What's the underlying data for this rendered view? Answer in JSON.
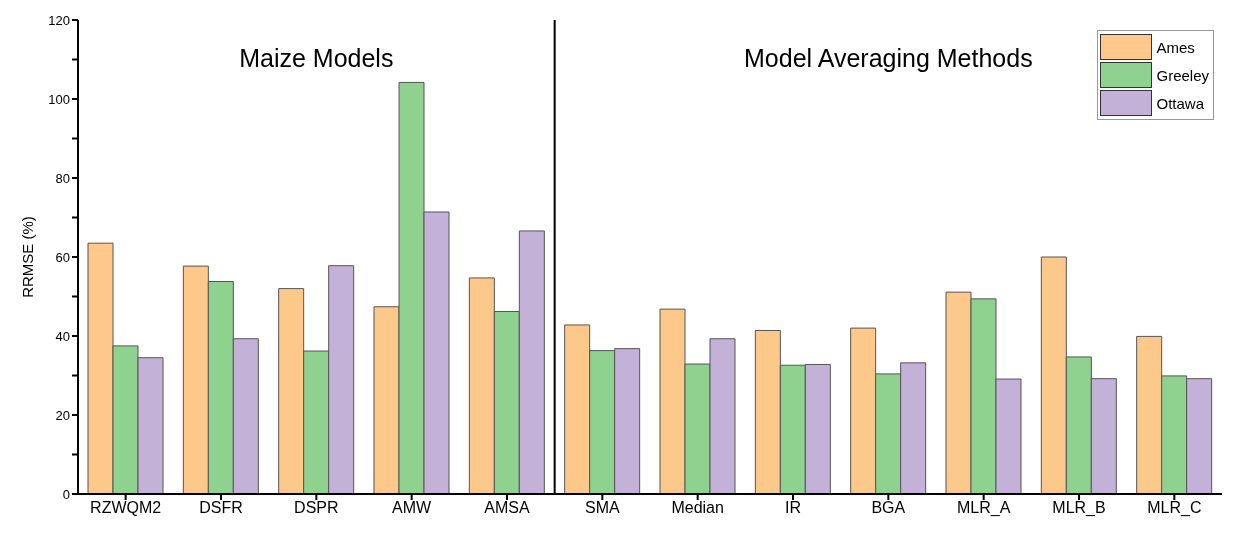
{
  "chart_data": {
    "type": "bar",
    "ylabel": "RRMSE (%)",
    "categories": [
      "RZWQM2",
      "DSFR",
      "DSPR",
      "AMW",
      "AMSA",
      "SMA",
      "Median",
      "IR",
      "BGA",
      "MLR_A",
      "MLR_B",
      "MLR_C"
    ],
    "series": [
      {
        "name": "Ames",
        "color": "#fdc98a",
        "values": [
          63.5,
          57.7,
          52,
          47.4,
          54.7,
          42.8,
          46.8,
          41.4,
          42,
          51.1,
          60,
          39.9
        ]
      },
      {
        "name": "Greeley",
        "color": "#8fd18f",
        "values": [
          37.5,
          53.8,
          36.2,
          104.2,
          46.2,
          36.3,
          32.9,
          32.6,
          30.4,
          49.4,
          34.7,
          29.9
        ]
      },
      {
        "name": "Ottawa",
        "color": "#c3b1d8",
        "values": [
          34.5,
          39.3,
          57.8,
          71.4,
          66.6,
          36.8,
          39.3,
          32.8,
          33.2,
          29.1,
          29.2,
          29.2
        ]
      }
    ],
    "ylim": [
      0,
      120
    ],
    "yticks": [
      0,
      {
        "value": 10,
        "label": null
      },
      20,
      {
        "value": 30,
        "label": null
      },
      40,
      {
        "value": 50,
        "label": null
      },
      60,
      {
        "value": 70,
        "label": null
      },
      80,
      {
        "value": 90,
        "label": null
      },
      100,
      {
        "value": 110,
        "label": null
      },
      120
    ],
    "annotations": [
      "Maize Models",
      "Model Averaging Methods"
    ],
    "grid": false,
    "legend": "top right"
  }
}
